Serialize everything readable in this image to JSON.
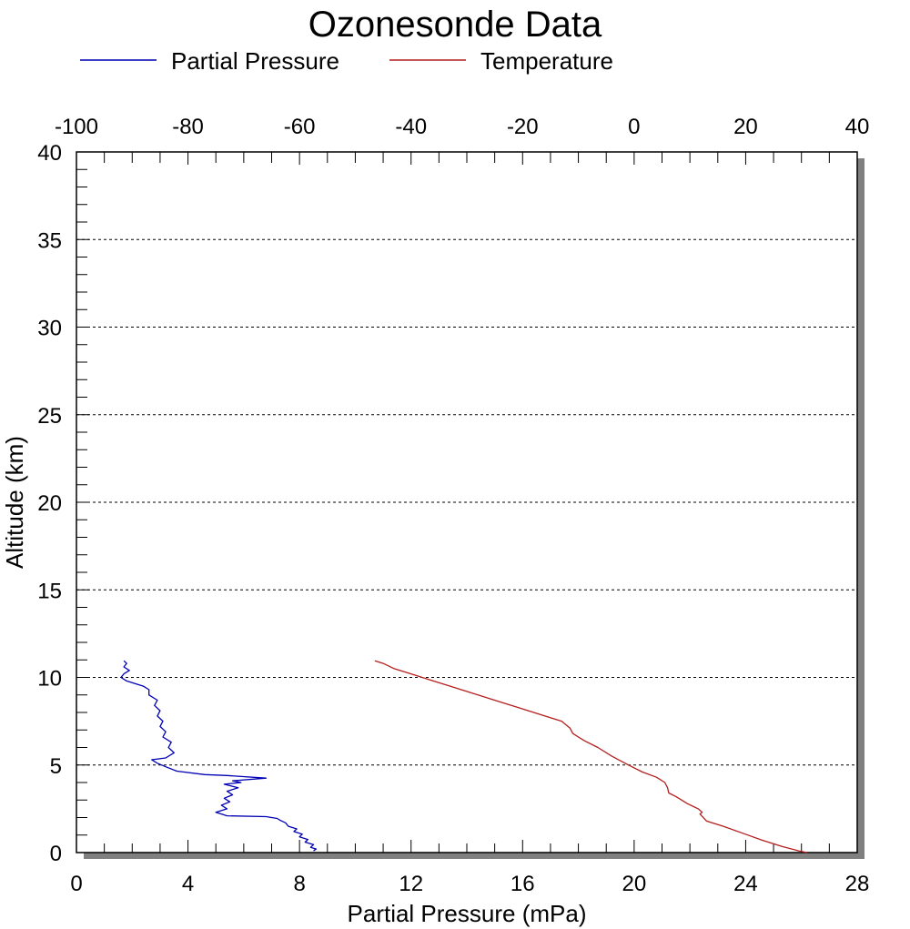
{
  "chart_data": {
    "type": "line",
    "title": "Ozonesonde Data",
    "xlabel": "Partial Pressure (mPa)",
    "ylabel": "Altitude (km)",
    "x_bottom": {
      "min": 0,
      "max": 28,
      "ticks": [
        "0",
        "4",
        "8",
        "12",
        "16",
        "20",
        "24",
        "28"
      ],
      "tick_values": [
        0,
        4,
        8,
        12,
        16,
        20,
        24,
        28
      ]
    },
    "x_top": {
      "min": -100,
      "max": 40,
      "ticks": [
        "-100",
        "-80",
        "-60",
        "-40",
        "-20",
        "0",
        "20",
        "40"
      ],
      "tick_values": [
        -100,
        -80,
        -60,
        -40,
        -20,
        0,
        20,
        40
      ]
    },
    "y": {
      "min": 0,
      "max": 40,
      "ticks": [
        "0",
        "5",
        "10",
        "15",
        "20",
        "25",
        "30",
        "35",
        "40"
      ],
      "tick_values": [
        0,
        5,
        10,
        15,
        20,
        25,
        30,
        35,
        40
      ]
    },
    "grid": "horizontal dashed",
    "legend_position": "top",
    "series": [
      {
        "name": "Partial Pressure",
        "color": "#0000b4",
        "axis": "bottom",
        "points": [
          [
            8.5,
            0.1
          ],
          [
            8.6,
            0.2
          ],
          [
            8.4,
            0.3
          ],
          [
            8.5,
            0.45
          ],
          [
            8.2,
            0.6
          ],
          [
            8.3,
            0.75
          ],
          [
            8.0,
            0.9
          ],
          [
            8.1,
            1.05
          ],
          [
            7.8,
            1.2
          ],
          [
            7.9,
            1.35
          ],
          [
            7.6,
            1.5
          ],
          [
            7.5,
            1.7
          ],
          [
            7.3,
            1.85
          ],
          [
            7.2,
            1.95
          ],
          [
            6.8,
            2.05
          ],
          [
            5.4,
            2.1
          ],
          [
            5.2,
            2.2
          ],
          [
            5.0,
            2.3
          ],
          [
            5.4,
            2.5
          ],
          [
            5.2,
            2.7
          ],
          [
            5.5,
            2.9
          ],
          [
            5.3,
            3.1
          ],
          [
            5.6,
            3.3
          ],
          [
            5.4,
            3.5
          ],
          [
            5.8,
            3.7
          ],
          [
            5.3,
            3.9
          ],
          [
            5.9,
            4.0
          ],
          [
            5.6,
            4.1
          ],
          [
            6.8,
            4.25
          ],
          [
            5.4,
            4.4
          ],
          [
            4.6,
            4.45
          ],
          [
            3.6,
            4.65
          ],
          [
            3.2,
            4.9
          ],
          [
            2.9,
            5.1
          ],
          [
            2.7,
            5.3
          ],
          [
            3.2,
            5.4
          ],
          [
            3.5,
            5.7
          ],
          [
            3.3,
            6.0
          ],
          [
            3.4,
            6.3
          ],
          [
            3.1,
            6.6
          ],
          [
            3.2,
            6.9
          ],
          [
            3.0,
            7.2
          ],
          [
            3.1,
            7.5
          ],
          [
            2.9,
            7.8
          ],
          [
            3.0,
            8.1
          ],
          [
            2.8,
            8.4
          ],
          [
            2.9,
            8.7
          ],
          [
            2.6,
            9.0
          ],
          [
            2.6,
            9.3
          ],
          [
            2.4,
            9.5
          ],
          [
            2.1,
            9.65
          ],
          [
            1.8,
            9.8
          ],
          [
            1.6,
            10.0
          ],
          [
            1.7,
            10.2
          ],
          [
            1.9,
            10.4
          ],
          [
            1.7,
            10.6
          ],
          [
            1.8,
            10.8
          ],
          [
            1.7,
            10.95
          ]
        ]
      },
      {
        "name": "Temperature",
        "color": "#b41e1e",
        "axis": "top",
        "points": [
          [
            -46.5,
            10.95
          ],
          [
            -45.0,
            10.8
          ],
          [
            -43.0,
            10.5
          ],
          [
            -40.0,
            10.2
          ],
          [
            -36.0,
            9.8
          ],
          [
            -32.0,
            9.4
          ],
          [
            -28.0,
            9.0
          ],
          [
            -24.0,
            8.6
          ],
          [
            -20.0,
            8.2
          ],
          [
            -16.0,
            7.8
          ],
          [
            -13.0,
            7.5
          ],
          [
            -11.5,
            7.1
          ],
          [
            -11.0,
            6.8
          ],
          [
            -9.0,
            6.4
          ],
          [
            -6.5,
            6.0
          ],
          [
            -4.0,
            5.5
          ],
          [
            -1.0,
            5.0
          ],
          [
            1.5,
            4.6
          ],
          [
            4.0,
            4.3
          ],
          [
            5.5,
            4.0
          ],
          [
            6.0,
            3.7
          ],
          [
            6.2,
            3.4
          ],
          [
            7.5,
            3.2
          ],
          [
            9.5,
            2.8
          ],
          [
            11.5,
            2.5
          ],
          [
            12.2,
            2.3
          ],
          [
            11.8,
            2.2
          ],
          [
            13.0,
            1.8
          ],
          [
            16.0,
            1.5
          ],
          [
            19.5,
            1.1
          ],
          [
            23.0,
            0.7
          ],
          [
            26.5,
            0.35
          ],
          [
            29.5,
            0.1
          ],
          [
            31.0,
            0.0
          ]
        ]
      }
    ]
  }
}
